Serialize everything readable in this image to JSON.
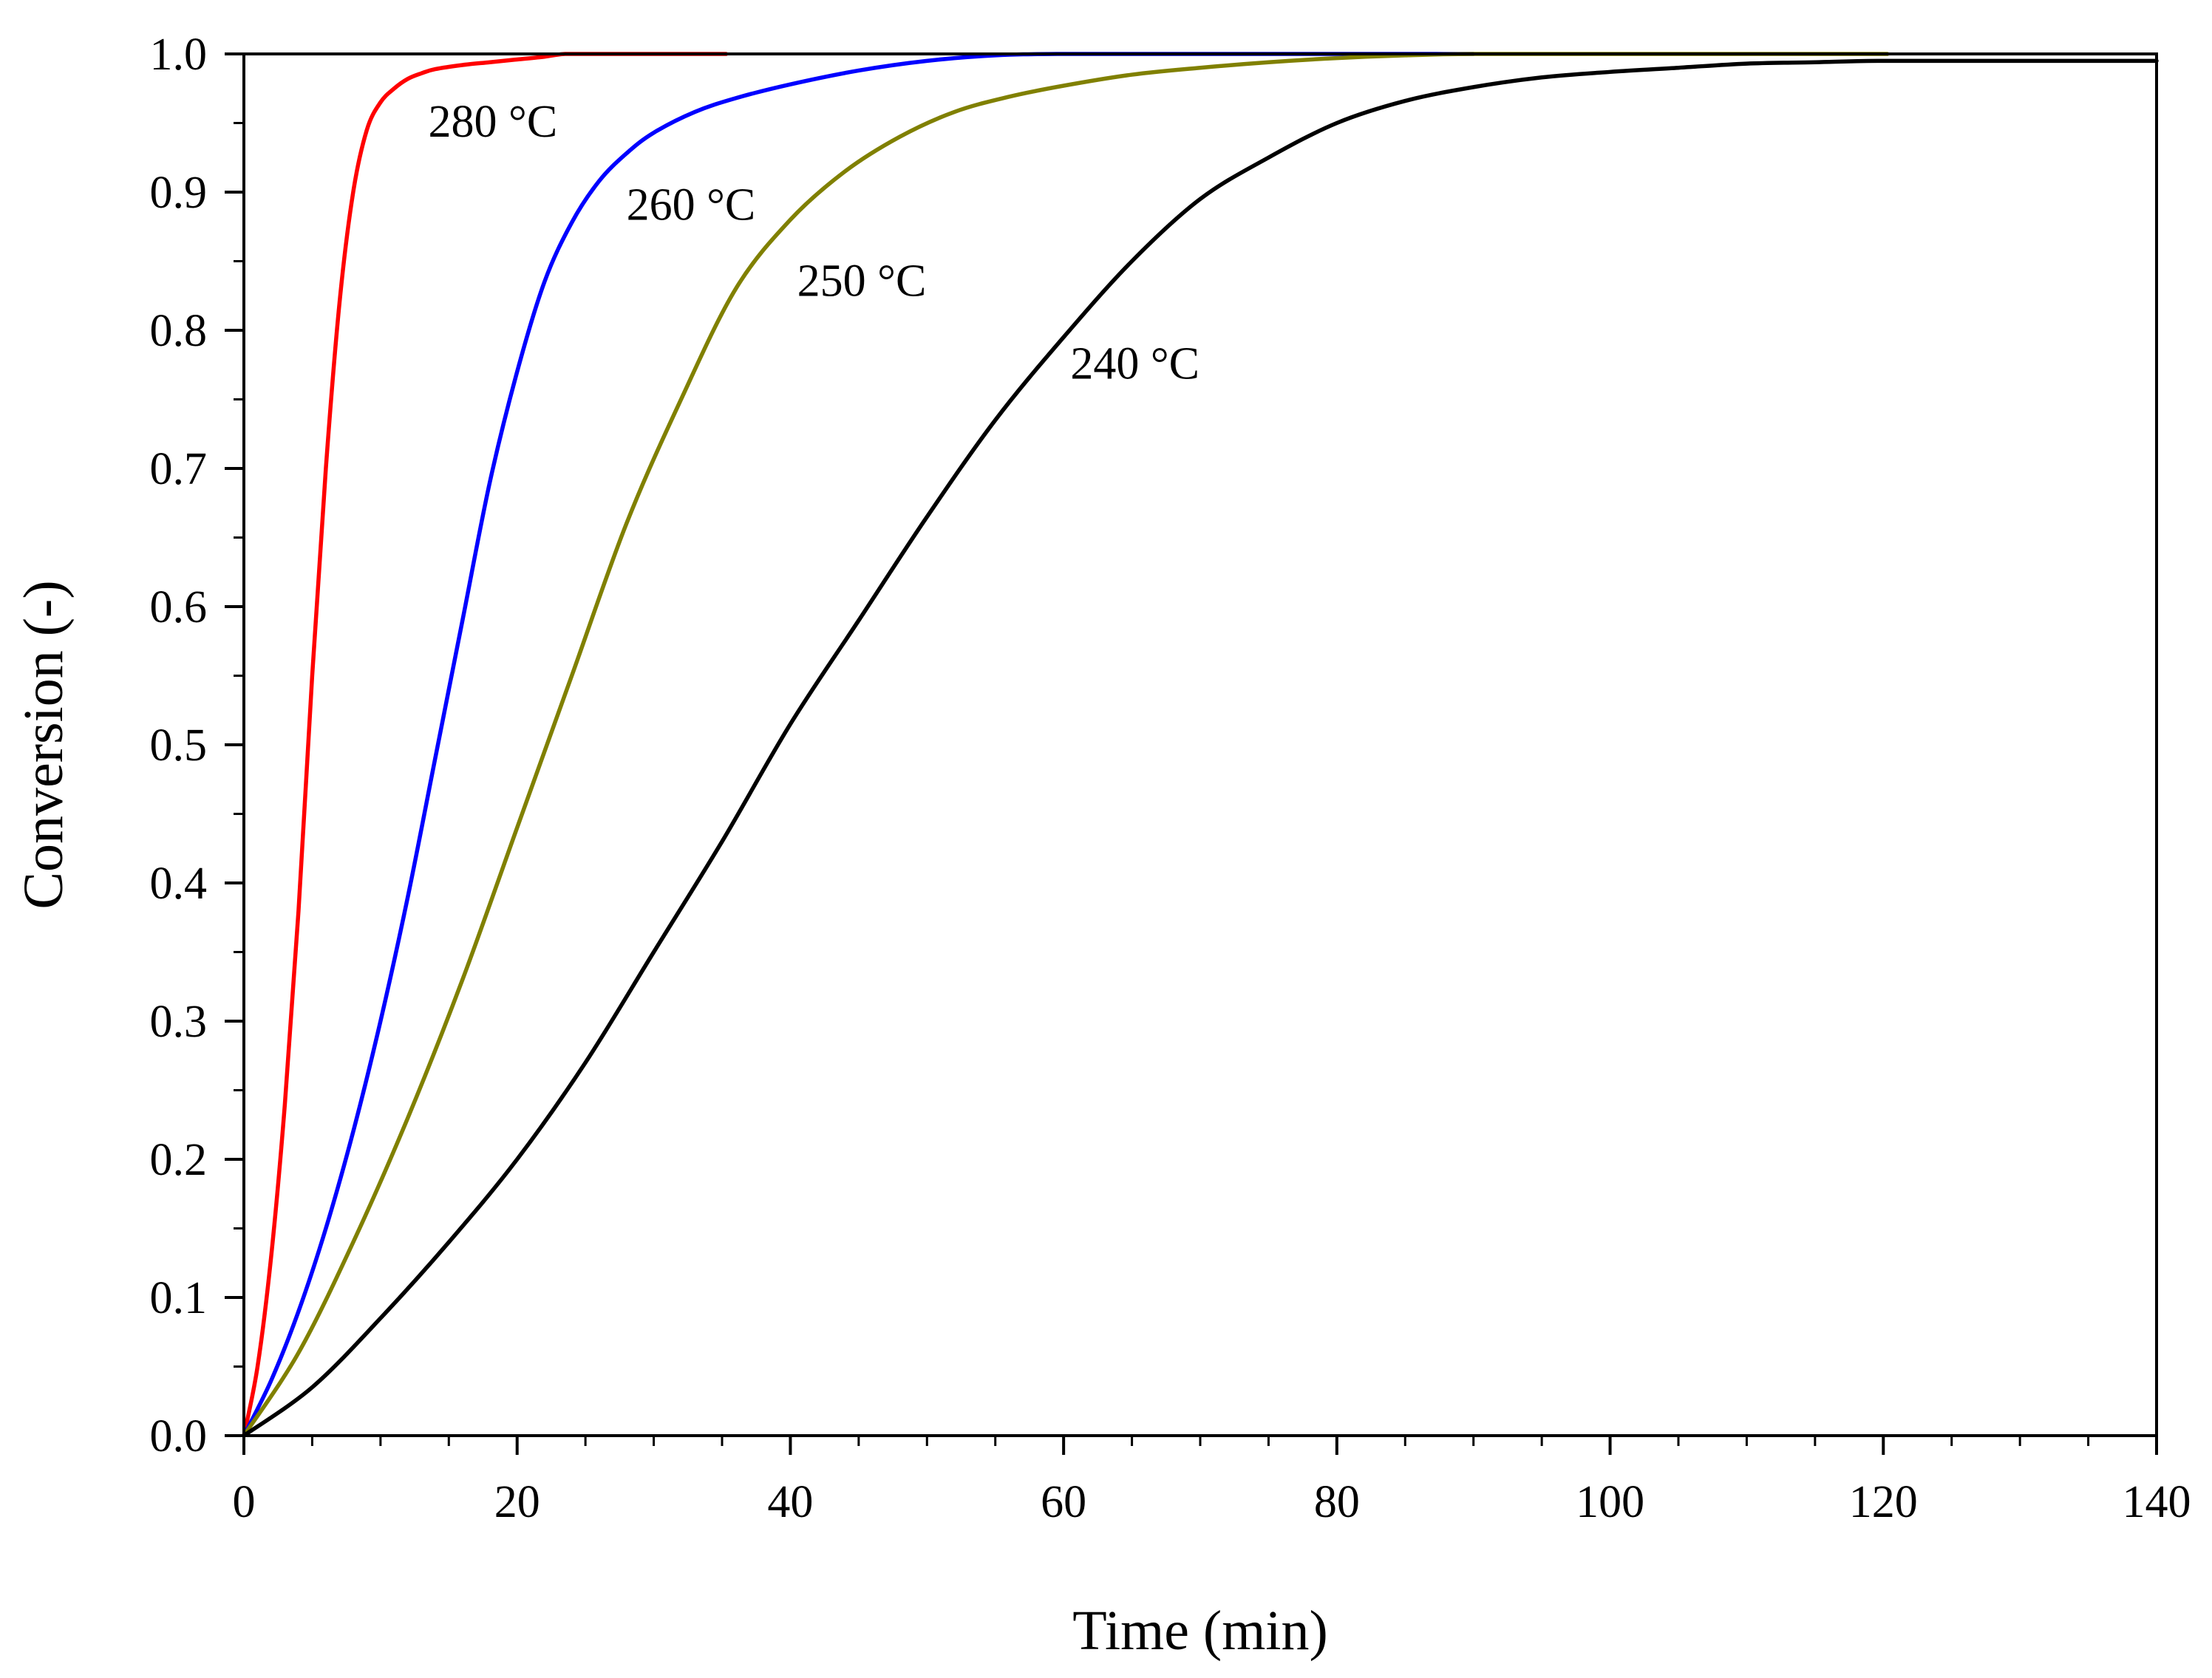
{
  "chart_data": {
    "type": "line",
    "title": "",
    "xlabel": "Time (min)",
    "ylabel": "Conversion (-)",
    "xlim": [
      0,
      140
    ],
    "ylim": [
      0.0,
      1.0
    ],
    "x_ticks": [
      0,
      20,
      40,
      60,
      80,
      100,
      120,
      140
    ],
    "x_tick_labels": [
      "0",
      "20",
      "40",
      "60",
      "80",
      "100",
      "120",
      "140"
    ],
    "x_minor_step": 5,
    "y_ticks": [
      0.0,
      0.1,
      0.2,
      0.3,
      0.4,
      0.5,
      0.6,
      0.7,
      0.8,
      0.9,
      1.0
    ],
    "y_tick_labels": [
      "0.0",
      "0.1",
      "0.2",
      "0.3",
      "0.4",
      "0.5",
      "0.6",
      "0.7",
      "0.8",
      "0.9",
      "1.0"
    ],
    "grid": false,
    "legend": "none",
    "series": [
      {
        "name": "280 °C",
        "color": "#ff0000",
        "label_at": [
          13.5,
          0.94
        ],
        "x": [
          0,
          1,
          2,
          3,
          4,
          5,
          6,
          7,
          8,
          9,
          10,
          11,
          12,
          13,
          14,
          16,
          18,
          20,
          22,
          23.5,
          26,
          30,
          35.3
        ],
        "y": [
          0.0,
          0.05,
          0.13,
          0.24,
          0.38,
          0.55,
          0.7,
          0.82,
          0.9,
          0.945,
          0.965,
          0.975,
          0.982,
          0.986,
          0.989,
          0.992,
          0.994,
          0.996,
          0.998,
          1.0,
          1.0,
          1.0,
          1.0
        ]
      },
      {
        "name": "260 °C",
        "color": "#0000ff",
        "label_at": [
          28,
          0.88
        ],
        "x": [
          0,
          2,
          4,
          6,
          8,
          10,
          12,
          14,
          16,
          18,
          20,
          22,
          24,
          26,
          28,
          30,
          33,
          36,
          40,
          45,
          50,
          55,
          60,
          70,
          80,
          90
        ],
        "y": [
          0.0,
          0.04,
          0.09,
          0.15,
          0.22,
          0.3,
          0.39,
          0.49,
          0.59,
          0.69,
          0.77,
          0.835,
          0.878,
          0.908,
          0.928,
          0.943,
          0.958,
          0.968,
          0.978,
          0.988,
          0.995,
          0.999,
          1.0,
          1.0,
          1.0,
          1.0
        ]
      },
      {
        "name": "250 °C",
        "color": "#808000",
        "label_at": [
          40.5,
          0.825
        ],
        "x": [
          0,
          4,
          8,
          12,
          16,
          20,
          24,
          28,
          32,
          36,
          40,
          44,
          48,
          52,
          56,
          60,
          65,
          70,
          75,
          80,
          85,
          90,
          100,
          110,
          120.3
        ],
        "y": [
          0.0,
          0.06,
          0.14,
          0.23,
          0.33,
          0.44,
          0.55,
          0.66,
          0.75,
          0.83,
          0.88,
          0.915,
          0.94,
          0.958,
          0.969,
          0.977,
          0.985,
          0.99,
          0.994,
          0.997,
          0.999,
          1.0,
          1.0,
          1.0,
          1.0
        ]
      },
      {
        "name": "240 °C",
        "color": "#000000",
        "label_at": [
          60.5,
          0.765
        ],
        "x": [
          0,
          5,
          10,
          15,
          20,
          25,
          30,
          35,
          40,
          45,
          50,
          55,
          60,
          65,
          70,
          75,
          80,
          85,
          90,
          95,
          100,
          105,
          110,
          115,
          120,
          130,
          140
        ],
        "y": [
          0.0,
          0.035,
          0.085,
          0.14,
          0.2,
          0.27,
          0.35,
          0.43,
          0.515,
          0.59,
          0.665,
          0.735,
          0.795,
          0.85,
          0.895,
          0.925,
          0.95,
          0.966,
          0.976,
          0.983,
          0.987,
          0.99,
          0.993,
          0.994,
          0.995,
          0.995,
          0.995
        ]
      }
    ]
  }
}
